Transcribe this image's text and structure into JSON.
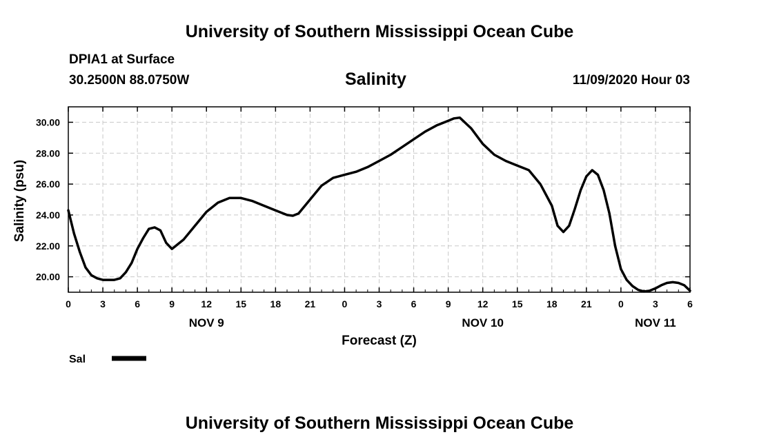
{
  "page": {
    "header_title": "University of Southern Mississippi Ocean Cube",
    "footer_title": "University of Southern Mississippi Ocean Cube",
    "station": "DPIA1 at Surface",
    "location": "30.2500N 88.0750W",
    "timestamp": "11/09/2020 Hour 03"
  },
  "chart_data": {
    "type": "line",
    "title": "Salinity",
    "xlabel": "Forecast (Z)",
    "ylabel": "Salinity (psu)",
    "xlim": [
      0,
      54
    ],
    "ylim": [
      19.0,
      31.0
    ],
    "grid": true,
    "grid_style": "dashed",
    "line_color": "#000000",
    "x_ticks": [
      0,
      3,
      6,
      9,
      12,
      15,
      18,
      21,
      24,
      27,
      30,
      33,
      36,
      39,
      42,
      45,
      48,
      51,
      54
    ],
    "x_tick_labels": [
      "0",
      "3",
      "6",
      "9",
      "12",
      "15",
      "18",
      "21",
      "0",
      "3",
      "6",
      "9",
      "12",
      "15",
      "18",
      "21",
      "0",
      "3",
      "6"
    ],
    "y_ticks": [
      20,
      22,
      24,
      26,
      28,
      30
    ],
    "y_tick_labels": [
      "20.00",
      "22.00",
      "24.00",
      "26.00",
      "28.00",
      "30.00"
    ],
    "date_labels": [
      {
        "label": "NOV 9",
        "x": 12
      },
      {
        "label": "NOV 10",
        "x": 36
      },
      {
        "label": "NOV 11",
        "x": 51
      }
    ],
    "legend": {
      "placement": "bottom-left",
      "entries": [
        "Sal"
      ]
    },
    "series": [
      {
        "name": "Sal",
        "x": [
          0,
          0.5,
          1,
          1.5,
          2,
          2.5,
          3,
          3.5,
          4,
          4.5,
          5,
          5.5,
          6,
          6.5,
          7,
          7.5,
          8,
          8.5,
          9,
          9.5,
          10,
          11,
          12,
          13,
          14,
          15,
          16,
          17,
          18,
          19,
          19.5,
          20,
          21,
          22,
          23,
          24,
          25,
          26,
          27,
          28,
          29,
          30,
          31,
          32,
          33,
          33.5,
          34,
          35,
          36,
          37,
          38,
          39,
          40,
          41,
          42,
          42.5,
          43,
          43.5,
          44,
          44.5,
          45,
          45.5,
          46,
          46.5,
          47,
          47.5,
          48,
          48.5,
          49,
          49.5,
          50,
          50.5,
          51,
          51.5,
          52,
          52.5,
          53,
          53.5,
          54
        ],
        "values": [
          24.3,
          22.8,
          21.6,
          20.6,
          20.1,
          19.9,
          19.8,
          19.8,
          19.8,
          19.9,
          20.3,
          20.9,
          21.8,
          22.5,
          23.1,
          23.2,
          23.0,
          22.2,
          21.8,
          22.1,
          22.4,
          23.3,
          24.2,
          24.8,
          25.1,
          25.1,
          24.9,
          24.6,
          24.3,
          24.0,
          23.95,
          24.1,
          25.0,
          25.9,
          26.4,
          26.6,
          26.8,
          27.1,
          27.5,
          27.9,
          28.4,
          28.9,
          29.4,
          29.8,
          30.1,
          30.25,
          30.3,
          29.6,
          28.6,
          27.9,
          27.5,
          27.2,
          26.9,
          26.0,
          24.6,
          23.3,
          22.9,
          23.3,
          24.4,
          25.6,
          26.5,
          26.9,
          26.6,
          25.6,
          24.1,
          22.0,
          20.5,
          19.8,
          19.4,
          19.15,
          19.05,
          19.1,
          19.25,
          19.45,
          19.6,
          19.65,
          19.6,
          19.45,
          19.1
        ]
      }
    ]
  }
}
